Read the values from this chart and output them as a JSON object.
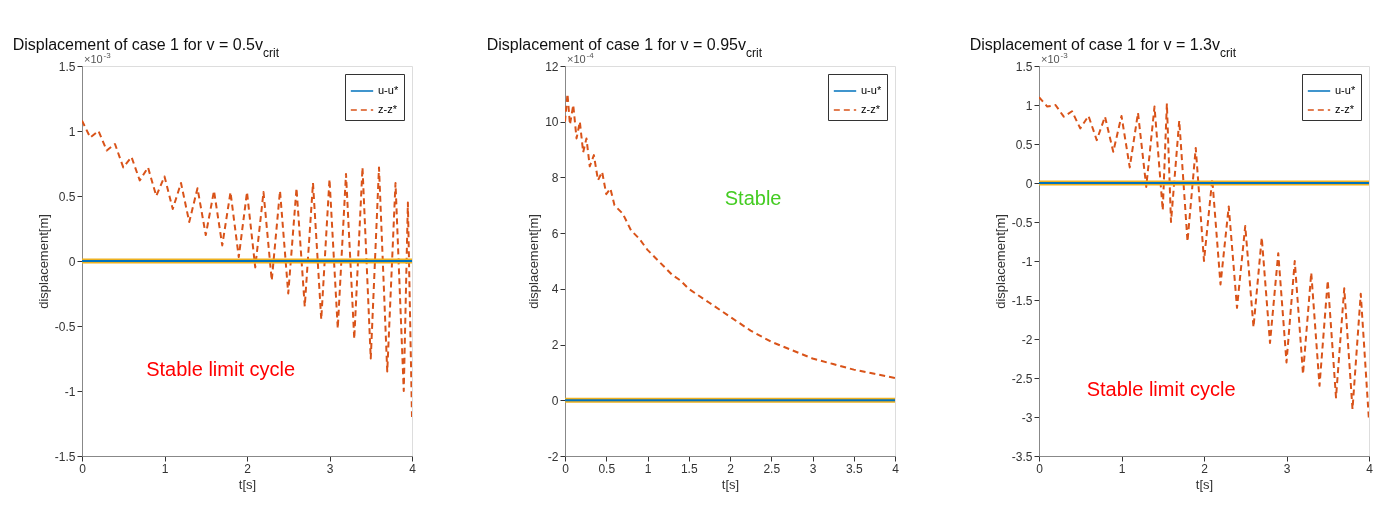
{
  "chart_data": [
    {
      "type": "line",
      "title": "Displacement of case 1 for v = 0.5v$_{crit}$",
      "xlabel": "t[s]",
      "ylabel": "displacement[m]",
      "annotations": [
        "×10$^{-3}$",
        "Stable limit cycle"
      ],
      "xlim": [
        0,
        4
      ],
      "ylim": [
        -1.5,
        1.5
      ],
      "xticks": [
        0,
        1,
        2,
        3,
        4
      ],
      "yticks": [
        -1.5,
        -1,
        -0.5,
        0,
        0.5,
        1,
        1.5
      ],
      "grid": false,
      "legend": "top right",
      "series": [
        {
          "name": "z-z*",
          "color": "#d95319",
          "line_style": "dashed",
          "x": [
            0,
            0.1,
            0.2,
            0.3,
            0.4,
            0.5,
            0.6,
            0.7,
            0.8,
            0.9,
            1.0,
            1.1,
            1.2,
            1.3,
            1.4,
            1.5,
            1.6,
            1.7,
            1.8,
            1.9,
            2.0,
            2.1,
            2.2,
            2.3,
            2.4,
            2.5,
            2.6,
            2.7,
            2.8,
            2.9,
            3.0,
            3.1,
            3.2,
            3.3,
            3.4,
            3.5,
            3.6,
            3.7,
            3.8,
            3.9,
            3.95,
            4.0
          ],
          "values": [
            1.08,
            0.95,
            1.0,
            0.85,
            0.9,
            0.72,
            0.8,
            0.62,
            0.72,
            0.5,
            0.65,
            0.4,
            0.6,
            0.3,
            0.56,
            0.2,
            0.54,
            0.12,
            0.53,
            0.03,
            0.53,
            -0.05,
            0.53,
            -0.15,
            0.54,
            -0.25,
            0.56,
            -0.35,
            0.6,
            -0.45,
            0.63,
            -0.52,
            0.67,
            -0.6,
            0.72,
            -0.75,
            0.72,
            -0.85,
            0.6,
            -1.0,
            0.45,
            -1.2
          ]
        },
        {
          "color": "#edb120",
          "line_style": "solid",
          "x": [
            0,
            4
          ],
          "values": [
            0,
            0
          ]
        },
        {
          "name": "u-u*",
          "color": "#0072bd",
          "line_style": "solid",
          "x": [
            0,
            4
          ],
          "values": [
            0,
            0
          ]
        }
      ]
    },
    {
      "type": "line",
      "title": "Displacement of case 1 for v = 0.95v$_{crit}$",
      "xlabel": "t[s]",
      "ylabel": "displacement[m]",
      "annotations": [
        "×10$^{-4}$",
        "Stable"
      ],
      "xlim": [
        0,
        4
      ],
      "ylim": [
        -2,
        12
      ],
      "xticks": [
        0,
        0.5,
        1,
        1.5,
        2,
        2.5,
        3,
        3.5,
        4
      ],
      "yticks": [
        -2,
        0,
        2,
        4,
        6,
        8,
        10,
        12
      ],
      "grid": false,
      "legend": "top right",
      "series": [
        {
          "name": "z-z*",
          "color": "#d95319",
          "line_style": "dashed",
          "x": [
            0,
            0.03,
            0.06,
            0.1,
            0.14,
            0.18,
            0.22,
            0.26,
            0.3,
            0.35,
            0.4,
            0.45,
            0.5,
            0.55,
            0.6,
            0.7,
            0.8,
            0.9,
            1.0,
            1.1,
            1.2,
            1.3,
            1.4,
            1.5,
            1.75,
            2,
            2.25,
            2.5,
            2.75,
            3,
            3.25,
            3.5,
            3.75,
            4
          ],
          "values": [
            10,
            11,
            9.9,
            10.6,
            9.4,
            10.0,
            8.9,
            9.4,
            8.4,
            8.8,
            7.9,
            8.2,
            7.4,
            7.6,
            7.0,
            6.7,
            6.1,
            5.8,
            5.4,
            5.1,
            4.8,
            4.5,
            4.3,
            4.0,
            3.5,
            3.0,
            2.5,
            2.1,
            1.8,
            1.5,
            1.3,
            1.1,
            0.95,
            0.8
          ]
        },
        {
          "color": "#edb120",
          "line_style": "solid",
          "x": [
            0,
            4
          ],
          "values": [
            0,
            0
          ]
        },
        {
          "name": "u-u*",
          "color": "#0072bd",
          "line_style": "solid",
          "x": [
            0,
            4
          ],
          "values": [
            0,
            0
          ]
        }
      ]
    },
    {
      "type": "line",
      "title": "Displacement of case 1 for v = 1.3v$_{crit}$",
      "xlabel": "t[s]",
      "ylabel": "displacement[m]",
      "annotations": [
        "×10$^{-3}$",
        "Stable limit cycle"
      ],
      "xlim": [
        0,
        4
      ],
      "ylim": [
        -3.5,
        1.5
      ],
      "xticks": [
        0,
        1,
        2,
        3,
        4
      ],
      "yticks": [
        -3.5,
        -3,
        -2.5,
        -2,
        -1.5,
        -1,
        -0.5,
        0,
        0.5,
        1,
        1.5
      ],
      "grid": false,
      "legend": "top right",
      "series": [
        {
          "name": "z-z*",
          "color": "#d95319",
          "line_style": "dashed",
          "x": [
            0,
            0.1,
            0.2,
            0.3,
            0.4,
            0.5,
            0.6,
            0.7,
            0.8,
            0.9,
            1.0,
            1.1,
            1.2,
            1.3,
            1.4,
            1.5,
            1.55,
            1.6,
            1.7,
            1.8,
            1.9,
            2.0,
            2.1,
            2.2,
            2.3,
            2.4,
            2.5,
            2.6,
            2.7,
            2.8,
            2.9,
            3.0,
            3.1,
            3.2,
            3.3,
            3.4,
            3.5,
            3.6,
            3.7,
            3.8,
            3.9,
            4.0
          ],
          "values": [
            1.1,
            0.98,
            1.0,
            0.85,
            0.92,
            0.7,
            0.86,
            0.55,
            0.85,
            0.4,
            0.86,
            0.2,
            0.9,
            -0.05,
            0.98,
            -0.35,
            1.02,
            -0.5,
            0.8,
            -0.75,
            0.45,
            -1.0,
            0.05,
            -1.3,
            -0.3,
            -1.6,
            -0.55,
            -1.85,
            -0.7,
            -2.05,
            -0.9,
            -2.3,
            -1.0,
            -2.45,
            -1.15,
            -2.6,
            -1.25,
            -2.75,
            -1.35,
            -2.9,
            -1.42,
            -3.05
          ]
        },
        {
          "color": "#edb120",
          "line_style": "solid",
          "x": [
            0,
            4
          ],
          "values": [
            0,
            0
          ]
        },
        {
          "name": "u-u*",
          "color": "#0072bd",
          "line_style": "solid",
          "x": [
            0,
            4
          ],
          "values": [
            0,
            0
          ]
        }
      ]
    }
  ]
}
